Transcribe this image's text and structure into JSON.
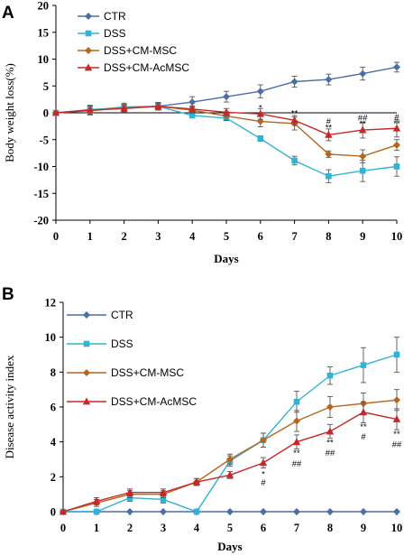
{
  "chart_data": [
    {
      "panel_label": "A",
      "type": "line",
      "ylabel": "Body weight loss(%)",
      "xlabel": "Days",
      "x": [
        0,
        1,
        2,
        3,
        4,
        5,
        6,
        7,
        8,
        9,
        10
      ],
      "xlim": [
        0,
        10
      ],
      "ylim": [
        -20,
        20
      ],
      "yticks": [
        -20,
        -15,
        -10,
        -5,
        0,
        5,
        10,
        15,
        20
      ],
      "grid": false,
      "legend_position": "top-left",
      "series": [
        {
          "name": "CTR",
          "color": "#4a6fa5",
          "marker": "diamond",
          "values": [
            0,
            0.6,
            0.9,
            1.2,
            2.0,
            3.0,
            4.0,
            5.8,
            6.2,
            7.3,
            8.5
          ],
          "errors": [
            0,
            0.8,
            0.7,
            0.7,
            1.0,
            1.0,
            1.2,
            1.0,
            1.0,
            1.2,
            0.9
          ]
        },
        {
          "name": "DSS",
          "color": "#2fb3d6",
          "marker": "square",
          "values": [
            0,
            0.5,
            1.1,
            1.2,
            -0.5,
            -1.0,
            -4.8,
            -8.9,
            -11.8,
            -10.8,
            -10.0
          ],
          "errors": [
            0,
            0.8,
            0.7,
            0.7,
            0.3,
            0.4,
            0.5,
            0.8,
            1.2,
            2.0,
            1.8
          ]
        },
        {
          "name": "DSS+CM-MSC",
          "color": "#b5651d",
          "marker": "diamond",
          "values": [
            0,
            0.4,
            0.9,
            1.2,
            0.5,
            -0.6,
            -1.6,
            -2.0,
            -7.7,
            -8.1,
            -6.0
          ],
          "errors": [
            0,
            0.8,
            0.6,
            0.6,
            0.6,
            0.8,
            1.0,
            1.2,
            0.6,
            1.2,
            1.0
          ]
        },
        {
          "name": "DSS+CM-AcMSC",
          "color": "#c62828",
          "marker": "triangle",
          "values": [
            0,
            0.5,
            0.8,
            1.2,
            0.7,
            0.1,
            -0.2,
            -1.4,
            -4.1,
            -3.2,
            -2.9
          ],
          "errors": [
            0,
            0.8,
            0.7,
            0.7,
            0.6,
            0.7,
            1.0,
            0.9,
            1.1,
            1.5,
            1.6
          ]
        }
      ],
      "annotations": [
        {
          "x": 6,
          "y": 0.9,
          "text": "*"
        },
        {
          "x": 7,
          "y": -0.1,
          "text": "**"
        },
        {
          "x": 8,
          "y": -1.6,
          "text": "#"
        },
        {
          "x": 8,
          "y": -2.8,
          "text": "**"
        },
        {
          "x": 9,
          "y": -0.9,
          "text": "##"
        },
        {
          "x": 9,
          "y": -2.1,
          "text": "**"
        },
        {
          "x": 10,
          "y": -0.8,
          "text": "#"
        },
        {
          "x": 10,
          "y": -2.0,
          "text": "**"
        }
      ]
    },
    {
      "panel_label": "B",
      "type": "line",
      "ylabel": "Disease activity index",
      "xlabel": "Days",
      "x": [
        0,
        1,
        2,
        3,
        4,
        5,
        6,
        7,
        8,
        9,
        10
      ],
      "xlim": [
        0,
        10
      ],
      "ylim": [
        0,
        12
      ],
      "yticks": [
        0,
        2,
        4,
        6,
        8,
        10,
        12
      ],
      "grid": false,
      "legend_position": "top-left",
      "series": [
        {
          "name": "CTR",
          "color": "#4a6fa5",
          "marker": "diamond",
          "values": [
            0,
            0,
            0,
            0,
            0,
            0,
            0,
            0,
            0,
            0,
            0
          ],
          "errors": [
            0,
            0,
            0,
            0,
            0,
            0,
            0,
            0,
            0,
            0,
            0
          ]
        },
        {
          "name": "DSS",
          "color": "#2fb3d6",
          "marker": "square",
          "values": [
            0,
            0,
            0.8,
            0.7,
            0,
            2.9,
            4.1,
            6.3,
            7.8,
            8.4,
            9.0
          ],
          "errors": [
            0,
            0,
            0.2,
            0.2,
            0,
            0.3,
            0.4,
            0.6,
            0.5,
            1.0,
            1.0
          ]
        },
        {
          "name": "DSS+CM-MSC",
          "color": "#b5651d",
          "marker": "diamond",
          "values": [
            0,
            0.5,
            1.0,
            1.0,
            1.7,
            3.0,
            4.1,
            5.2,
            6.0,
            6.2,
            6.4
          ],
          "errors": [
            0,
            0.2,
            0.2,
            0.2,
            0.2,
            0.3,
            0.4,
            0.6,
            0.6,
            0.6,
            0.6
          ]
        },
        {
          "name": "DSS+CM-AcMSC",
          "color": "#c62828",
          "marker": "triangle",
          "values": [
            0,
            0.6,
            1.1,
            1.1,
            1.7,
            2.1,
            2.8,
            4.0,
            4.6,
            5.7,
            5.3
          ],
          "errors": [
            0,
            0.2,
            0.2,
            0.2,
            0.2,
            0.2,
            0.3,
            0.4,
            0.4,
            0.6,
            0.6
          ]
        }
      ],
      "annotations": [
        {
          "x": 6,
          "y": 2.15,
          "text": "*"
        },
        {
          "x": 6,
          "y": 1.65,
          "text": "#"
        },
        {
          "x": 7,
          "y": 3.35,
          "text": "**"
        },
        {
          "x": 7,
          "y": 2.75,
          "text": "##"
        },
        {
          "x": 8,
          "y": 3.95,
          "text": "**"
        },
        {
          "x": 8,
          "y": 3.35,
          "text": "##"
        },
        {
          "x": 9,
          "y": 4.85,
          "text": "**"
        },
        {
          "x": 9,
          "y": 4.3,
          "text": "#"
        },
        {
          "x": 10,
          "y": 4.45,
          "text": "**"
        },
        {
          "x": 10,
          "y": 3.85,
          "text": "##"
        }
      ]
    }
  ]
}
